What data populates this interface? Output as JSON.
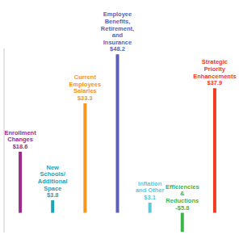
{
  "chart_data": {
    "type": "bar",
    "categories": [
      "Enrollment Changes",
      "New Schools/Additional Space",
      "Current Employees Salaries",
      "Employee Benefits, Retirement, and Insurance",
      "Inflation and Other",
      "Efficiencies & Reductions",
      "Strategic Priority Enhancements"
    ],
    "values": [
      18.6,
      3.8,
      33.3,
      48.2,
      3.1,
      -5.8,
      37.9
    ],
    "value_labels": [
      "$18.6",
      "$3.8",
      "$33.3",
      "$48.2",
      "$3.1",
      "-$5.8",
      "$37.9"
    ],
    "colors": [
      "#9b2b8c",
      "#1ba3b6",
      "#f7941d",
      "#5b5fb5",
      "#5cc8d6",
      "#3db54a",
      "#ee3b24"
    ],
    "ylim": [
      -6,
      50
    ],
    "data_labels": true,
    "tick_labels": false
  }
}
